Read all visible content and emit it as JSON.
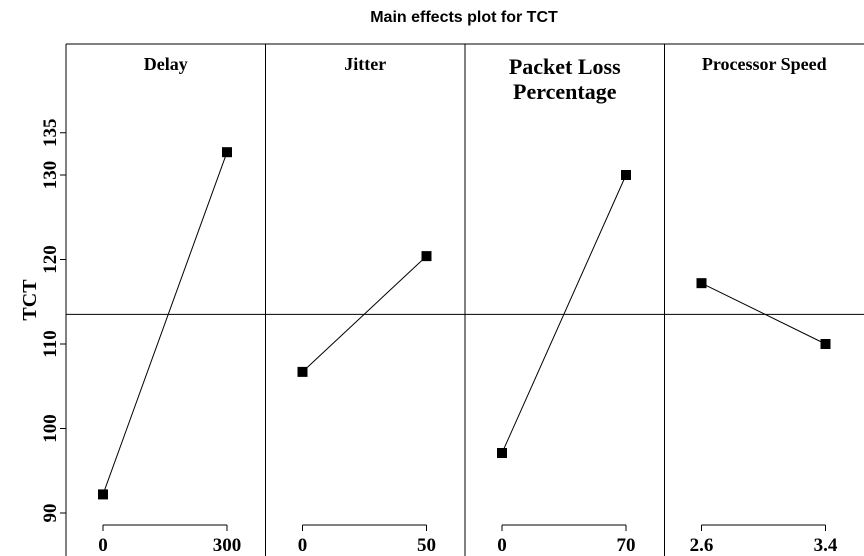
{
  "chart_data": {
    "type": "line",
    "title": "Main effects plot for TCT",
    "ylabel": "TCT",
    "ylim": [
      88,
      138
    ],
    "yticks": [
      90,
      100,
      110,
      120,
      130,
      135
    ],
    "mean_line": 113.5,
    "marker": "square",
    "color": "#000000",
    "panels": [
      {
        "name": "Delay",
        "title_lines": [
          "Delay"
        ],
        "x": [
          "0",
          "300"
        ],
        "values": [
          92.2,
          132.7
        ]
      },
      {
        "name": "Jitter",
        "title_lines": [
          "Jitter"
        ],
        "x": [
          "0",
          "50"
        ],
        "values": [
          106.7,
          120.4
        ]
      },
      {
        "name": "Packet Loss Percentage",
        "title_lines": [
          "Packet Loss",
          "Percentage"
        ],
        "x": [
          "0",
          "70"
        ],
        "values": [
          97.1,
          130.0
        ]
      },
      {
        "name": "Processor Speed",
        "title_lines": [
          "Processor Speed"
        ],
        "x": [
          "2.6",
          "3.4"
        ],
        "values": [
          117.2,
          110.0
        ]
      }
    ]
  }
}
